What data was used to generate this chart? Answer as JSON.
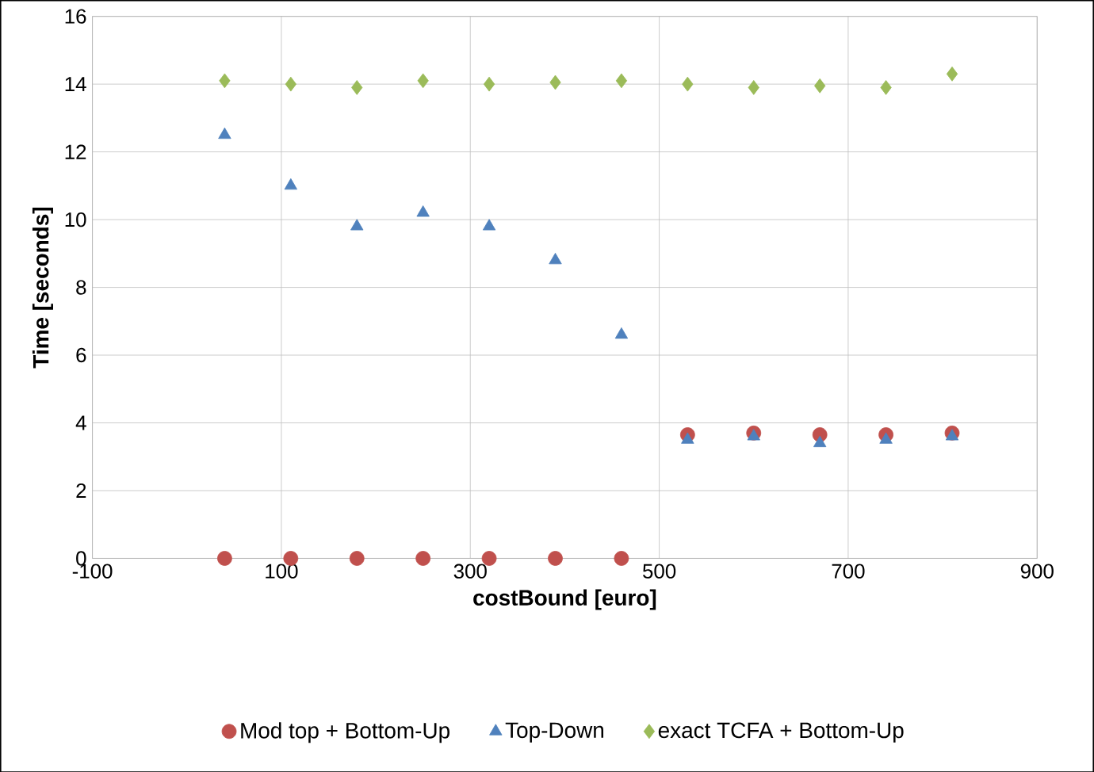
{
  "chart_data": {
    "type": "scatter",
    "xlabel": "costBound [euro]",
    "ylabel": "Time [seconds]",
    "x": [
      40,
      110,
      180,
      250,
      320,
      390,
      460,
      530,
      600,
      670,
      740,
      810
    ],
    "series": [
      {
        "name": "Mod top + Bottom-Up",
        "color": "#c0504d",
        "marker": "circle",
        "values": [
          0,
          0,
          0,
          0,
          0,
          0,
          0,
          3.65,
          3.7,
          3.65,
          3.65,
          3.7
        ]
      },
      {
        "name": "Top-Down",
        "color": "#4f81bd",
        "marker": "triangle",
        "values": [
          12.5,
          11.0,
          9.8,
          10.2,
          9.8,
          8.8,
          6.6,
          3.5,
          3.6,
          3.4,
          3.5,
          3.6
        ]
      },
      {
        "name": "exact TCFA + Bottom-Up",
        "color": "#9bbb59",
        "marker": "diamond",
        "values": [
          14.1,
          14.0,
          13.9,
          14.1,
          14.0,
          14.05,
          14.1,
          14.0,
          13.9,
          13.95,
          13.9,
          14.3
        ]
      }
    ],
    "xlim": [
      -100,
      900
    ],
    "xticks": [
      -100,
      100,
      300,
      500,
      700,
      900
    ],
    "ylim": [
      0,
      16
    ],
    "yticks": [
      0,
      2,
      4,
      6,
      8,
      10,
      12,
      14,
      16
    ],
    "grid": true,
    "legend": "bottom"
  }
}
